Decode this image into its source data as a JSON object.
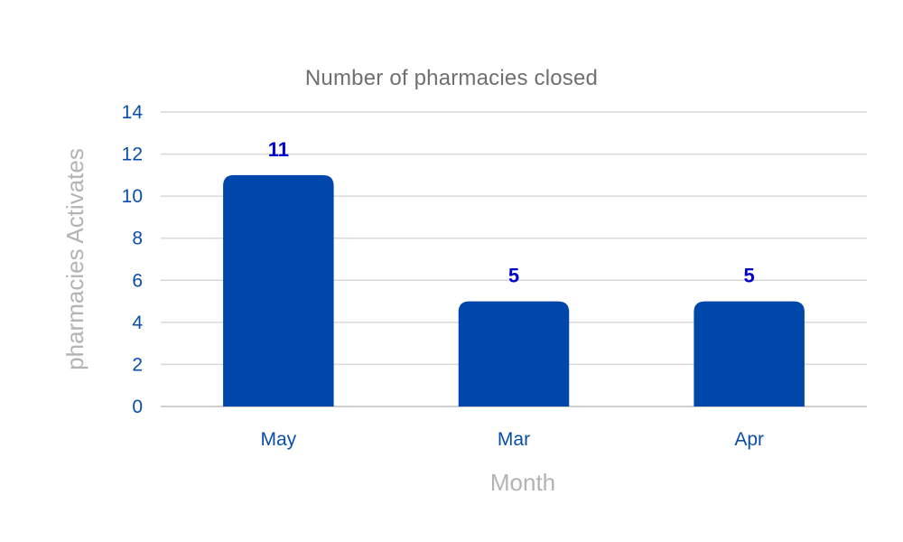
{
  "chart_data": {
    "type": "bar",
    "title": "Number of pharmacies closed",
    "xlabel": "Month",
    "ylabel": "pharmacies Activates",
    "categories": [
      "May",
      "Mar",
      "Apr"
    ],
    "values": [
      11,
      5,
      5
    ],
    "ylim": [
      0,
      14
    ],
    "yticks": [
      0,
      2,
      4,
      6,
      8,
      10,
      12,
      14
    ],
    "grid": true,
    "legend": "none",
    "bar_color": "#0047AB",
    "value_label_color": "#0000CC",
    "tick_label_color": "#0B4EA8",
    "axis_title_color": "#B3B3B3"
  }
}
